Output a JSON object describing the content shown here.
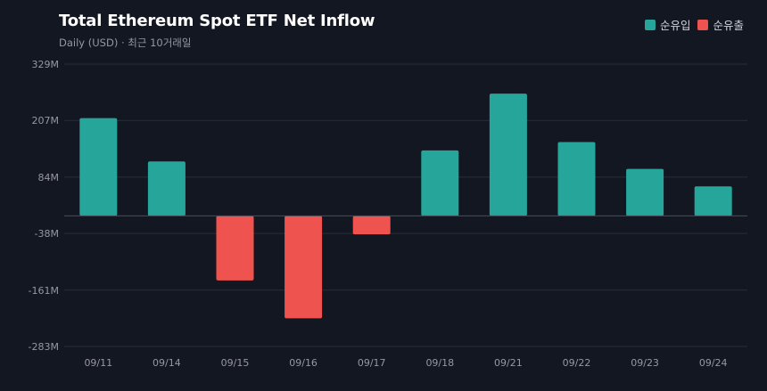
{
  "chart_data": {
    "type": "bar",
    "title": "Total Ethereum Spot ETF Net Inflow",
    "subtitle": "Daily (USD) · 최근 10거래일",
    "categories": [
      "09/11",
      "09/14",
      "09/15",
      "09/16",
      "09/17",
      "09/18",
      "09/21",
      "09/22",
      "09/23",
      "09/24"
    ],
    "values": [
      212,
      118,
      -140,
      -222,
      -40,
      142,
      265,
      160,
      102,
      64
    ],
    "unit": "M",
    "yticks": [
      329,
      207,
      84,
      -38,
      -161,
      -283
    ],
    "ylim": [
      -283,
      329
    ],
    "grid": true,
    "legend_position": "top-right",
    "legend": [
      {
        "label": "순유입",
        "color": "#26a69a"
      },
      {
        "label": "순유출",
        "color": "#ef5350"
      }
    ],
    "colors": {
      "positive": "#26a69a",
      "negative": "#ef5350",
      "background": "#131722",
      "grid": "#2a2e39",
      "zero_line": "#4a4e59"
    }
  }
}
